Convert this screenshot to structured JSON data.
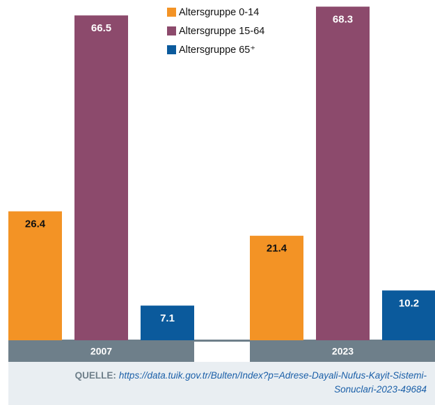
{
  "chart_data": {
    "type": "bar",
    "categories": [
      "2007",
      "2023"
    ],
    "series": [
      {
        "name": "Altersgruppe 0-14",
        "color": "#f39325",
        "values": [
          26.4,
          21.4
        ]
      },
      {
        "name": "Altersgruppe 15-64",
        "color": "#8c4a6c",
        "values": [
          66.5,
          68.3
        ]
      },
      {
        "name": "Altersgruppe 65⁺",
        "color": "#0b5a9c",
        "values": [
          7.1,
          10.2
        ]
      }
    ],
    "source_label": "QUELLE:",
    "source_url": "https://data.tuik.gov.tr/Bulten/Index?p=Adrese-Dayali-Nufus-Kayit-Sistemi-Sonuclari-2023-49684"
  }
}
